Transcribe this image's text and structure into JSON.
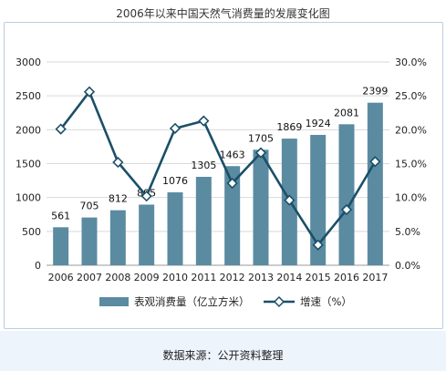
{
  "title": "2006年以来中国天然气消费量的发展变化图",
  "source": "数据来源：公开资料整理",
  "colors": {
    "bar": "#5b8ba1",
    "line": "#1b4f68",
    "marker_fill": "#ffffff"
  },
  "chart_data": {
    "type": "bar",
    "categories": [
      "2006",
      "2007",
      "2008",
      "2009",
      "2010",
      "2011",
      "2012",
      "2013",
      "2014",
      "2015",
      "2016",
      "2017"
    ],
    "series": [
      {
        "name": "表观消费量（亿立方米）",
        "type": "bar",
        "axis": "left",
        "values": [
          561,
          705,
          812,
          895,
          1076,
          1305,
          1463,
          1705,
          1869,
          1924,
          2081,
          2399
        ],
        "value_labels": [
          "561",
          "705",
          "812",
          "895",
          "1076",
          "1305",
          "1463",
          "1705",
          "1869",
          "1924",
          "2081",
          "2399"
        ]
      },
      {
        "name": "增速（%）",
        "type": "line",
        "axis": "right",
        "values": [
          20.1,
          25.6,
          15.2,
          10.2,
          20.2,
          21.3,
          12.1,
          16.6,
          9.6,
          3.0,
          8.2,
          15.3
        ]
      }
    ],
    "y_left": {
      "min": 0,
      "max": 3000,
      "ticks": [
        "0",
        "500",
        "1000",
        "1500",
        "2000",
        "2500",
        "3000"
      ]
    },
    "y_right": {
      "min": 0,
      "max": 30,
      "ticks": [
        "0.0%",
        "5.0%",
        "10.0%",
        "15.0%",
        "20.0%",
        "25.0%",
        "30.0%"
      ]
    },
    "grid": true,
    "legend_position": "bottom"
  }
}
